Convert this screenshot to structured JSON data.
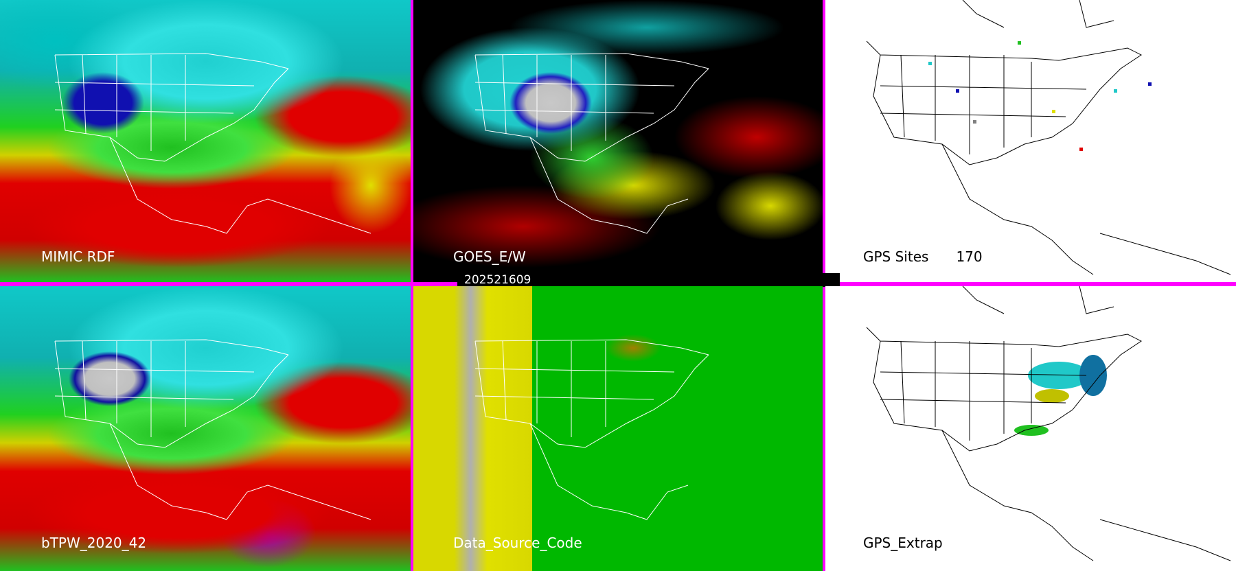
{
  "panels": {
    "top_left": {
      "label": "MIMIC RDF"
    },
    "top_middle": {
      "label": "GOES_E/W"
    },
    "top_right": {
      "label": "GPS Sites",
      "site_count": "170"
    },
    "bottom_left": {
      "label": "bTPW_2020_42"
    },
    "bottom_middle": {
      "label": "Data_Source_Code"
    },
    "bottom_right": {
      "label": "GPS_Extrap"
    }
  },
  "timestamp": "202521609",
  "colors": {
    "divider": "#ff00ff",
    "background_low": "#e00000",
    "mid": "#e0e000",
    "green": "#20d020",
    "cyan": "#20d0d0",
    "blue": "#1010b0",
    "high": "#c0c0c0"
  },
  "gps_site_colors": [
    "#1010b0",
    "#20c8c8",
    "#20c020",
    "#e0e000",
    "#e00000",
    "#808080"
  ]
}
